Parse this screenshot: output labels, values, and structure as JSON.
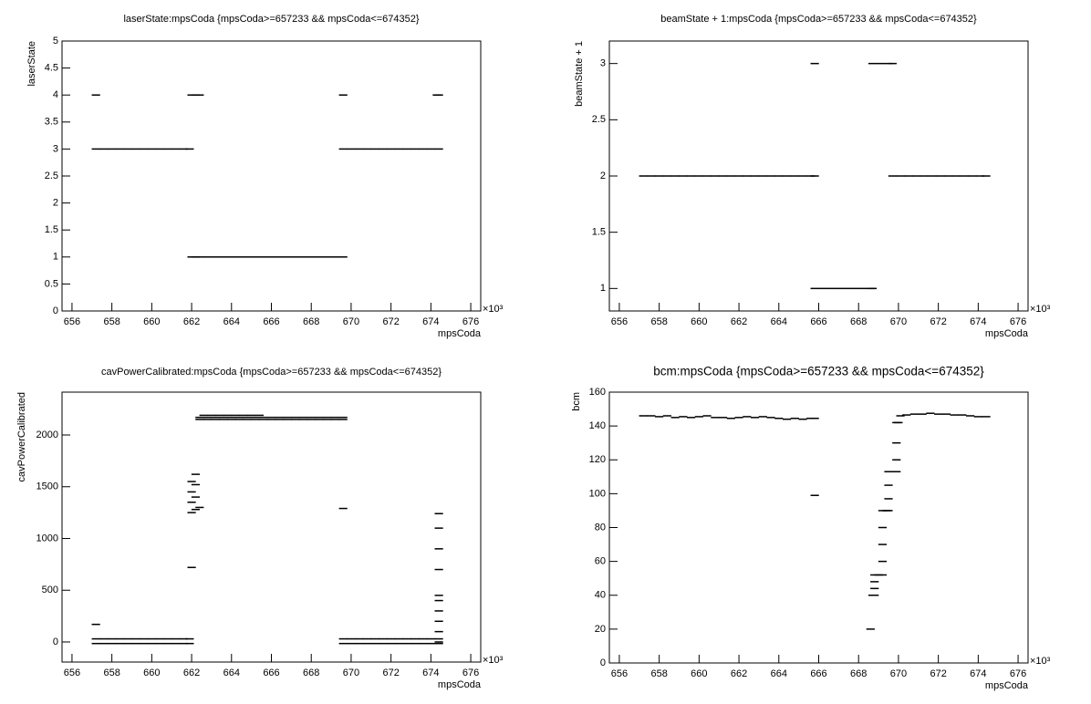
{
  "chart_data": [
    {
      "type": "scatter",
      "title": "laserState:mpsCoda {mpsCoda>=657233 && mpsCoda<=674352}",
      "x_label": "mpsCoda",
      "y_label": "laserState",
      "x_multiplier": "×10³",
      "color": "#000000",
      "xlim": [
        655.5,
        676.5
      ],
      "xticks": [
        656,
        658,
        660,
        662,
        664,
        666,
        668,
        670,
        672,
        674,
        676
      ],
      "ylim": [
        0,
        5
      ],
      "yticks": [
        0,
        0.5,
        1,
        1.5,
        2,
        2.5,
        3,
        3.5,
        4,
        4.5,
        5
      ],
      "x": [
        657.2,
        657.6,
        658.0,
        658.4,
        658.8,
        659.2,
        659.6,
        660.0,
        660.4,
        660.8,
        661.2,
        661.6,
        661.9,
        657.2,
        662.0,
        662.2,
        662.4,
        662.0,
        662.2,
        662.4,
        662.8,
        663.2,
        663.6,
        664.0,
        664.4,
        664.8,
        665.2,
        665.6,
        666.0,
        666.4,
        666.8,
        667.2,
        667.6,
        668.0,
        668.4,
        668.8,
        669.2,
        669.6,
        669.6,
        669.6,
        670.0,
        670.4,
        670.8,
        671.2,
        671.6,
        672.0,
        672.4,
        672.8,
        673.2,
        673.6,
        674.0,
        674.4,
        674.3,
        674.4
      ],
      "values": [
        3,
        3,
        3,
        3,
        3,
        3,
        3,
        3,
        3,
        3,
        3,
        3,
        3,
        4,
        4,
        4,
        4,
        1,
        1,
        1,
        1,
        1,
        1,
        1,
        1,
        1,
        1,
        1,
        1,
        1,
        1,
        1,
        1,
        1,
        1,
        1,
        1,
        1,
        4,
        3,
        3,
        3,
        3,
        3,
        3,
        3,
        3,
        3,
        3,
        3,
        3,
        3,
        4,
        4
      ]
    },
    {
      "type": "scatter",
      "title": "beamState + 1:mpsCoda {mpsCoda>=657233 && mpsCoda<=674352}",
      "x_label": "mpsCoda",
      "y_label": "beamState + 1",
      "x_multiplier": "×10³",
      "color": "#000000",
      "xlim": [
        655.5,
        676.5
      ],
      "xticks": [
        656,
        658,
        660,
        662,
        664,
        666,
        668,
        670,
        672,
        674,
        676
      ],
      "ylim": [
        0.8,
        3.2
      ],
      "yticks": [
        1,
        1.5,
        2,
        2.5,
        3
      ],
      "x": [
        657.2,
        657.6,
        658.0,
        658.4,
        658.8,
        659.2,
        659.6,
        660.0,
        660.4,
        660.8,
        661.2,
        661.6,
        662.0,
        662.4,
        662.8,
        663.2,
        663.6,
        664.0,
        664.4,
        664.8,
        665.2,
        665.6,
        665.8,
        665.8,
        665.8,
        666.2,
        666.6,
        667.0,
        667.4,
        667.8,
        668.2,
        668.6,
        668.7,
        668.7,
        669.1,
        669.5,
        669.7,
        669.7,
        670.1,
        670.5,
        670.9,
        671.3,
        671.7,
        672.1,
        672.5,
        672.9,
        673.3,
        673.7,
        674.1,
        674.4
      ],
      "values": [
        2,
        2,
        2,
        2,
        2,
        2,
        2,
        2,
        2,
        2,
        2,
        2,
        2,
        2,
        2,
        2,
        2,
        2,
        2,
        2,
        2,
        2,
        2,
        3,
        1,
        1,
        1,
        1,
        1,
        1,
        1,
        1,
        1,
        3,
        3,
        3,
        3,
        2,
        2,
        2,
        2,
        2,
        2,
        2,
        2,
        2,
        2,
        2,
        2,
        2
      ]
    },
    {
      "type": "scatter",
      "title": "cavPowerCalibrated:mpsCoda {mpsCoda>=657233 && mpsCoda<=674352}",
      "x_label": "mpsCoda",
      "y_label": "cavPowerCalibrated",
      "x_multiplier": "×10³",
      "color": "#000000",
      "xlim": [
        655.5,
        676.5
      ],
      "xticks": [
        656,
        658,
        660,
        662,
        664,
        666,
        668,
        670,
        672,
        674,
        676
      ],
      "ylim": [
        -194,
        2414
      ],
      "yticks": [
        0,
        500,
        1000,
        1500,
        2000
      ],
      "x": [
        657.2,
        657.6,
        658.0,
        658.4,
        658.8,
        659.2,
        659.6,
        660.0,
        660.4,
        660.8,
        661.2,
        661.6,
        661.9,
        657.2,
        657.6,
        658.0,
        658.4,
        658.8,
        659.2,
        659.6,
        660.0,
        660.4,
        660.8,
        661.2,
        661.6,
        661.9,
        657.2,
        662.0,
        662.0,
        662.0,
        662.0,
        662.0,
        662.2,
        662.2,
        662.2,
        662.2,
        662.4,
        662.6,
        663.0,
        663.4,
        663.8,
        664.2,
        664.6,
        665.0,
        665.4,
        662.4,
        662.8,
        663.2,
        663.6,
        664.0,
        664.4,
        664.8,
        665.2,
        665.6,
        666.0,
        666.4,
        666.8,
        667.2,
        667.6,
        668.0,
        668.4,
        668.8,
        669.2,
        669.6,
        662.4,
        662.8,
        663.2,
        663.6,
        664.0,
        664.4,
        664.8,
        665.2,
        665.6,
        666.0,
        666.4,
        666.8,
        667.2,
        667.6,
        668.0,
        668.4,
        668.8,
        669.2,
        669.6,
        669.6,
        669.6,
        670.0,
        670.4,
        670.8,
        671.2,
        671.6,
        672.0,
        672.4,
        672.8,
        673.2,
        673.6,
        674.0,
        674.4,
        669.6,
        670.0,
        670.4,
        670.8,
        671.2,
        671.6,
        672.0,
        672.4,
        672.8,
        673.2,
        673.6,
        674.0,
        674.4,
        674.4,
        674.4,
        674.4,
        674.4,
        674.4,
        674.4,
        674.4,
        674.4,
        674.4,
        674.4
      ],
      "values": [
        30,
        30,
        30,
        30,
        30,
        30,
        30,
        30,
        30,
        30,
        30,
        30,
        30,
        -15,
        -15,
        -15,
        -15,
        -15,
        -15,
        -15,
        -15,
        -15,
        -15,
        -15,
        -15,
        -15,
        170,
        720,
        1250,
        1350,
        1450,
        1550,
        1280,
        1400,
        1520,
        1620,
        1300,
        2190,
        2190,
        2190,
        2190,
        2190,
        2190,
        2190,
        2190,
        2170,
        2170,
        2170,
        2170,
        2170,
        2170,
        2170,
        2170,
        2170,
        2170,
        2170,
        2170,
        2170,
        2170,
        2170,
        2170,
        2170,
        2170,
        2170,
        2150,
        2150,
        2150,
        2150,
        2150,
        2150,
        2150,
        2150,
        2150,
        2150,
        2150,
        2150,
        2150,
        2150,
        2150,
        2150,
        2150,
        2150,
        2150,
        1290,
        30,
        30,
        30,
        30,
        30,
        30,
        30,
        30,
        30,
        30,
        30,
        30,
        30,
        -15,
        -15,
        -15,
        -15,
        -15,
        -15,
        -15,
        -15,
        -15,
        -15,
        -15,
        -15,
        -15,
        0,
        100,
        200,
        300,
        400,
        450,
        700,
        900,
        1100,
        1240
      ]
    },
    {
      "type": "scatter",
      "title": "bcm:mpsCoda {mpsCoda>=657233 && mpsCoda<=674352}",
      "x_label": "mpsCoda",
      "y_label": "bcm",
      "x_multiplier": "×10³",
      "color": "#000000",
      "xlim": [
        655.5,
        676.5
      ],
      "xticks": [
        656,
        658,
        660,
        662,
        664,
        666,
        668,
        670,
        672,
        674,
        676
      ],
      "ylim": [
        0,
        160
      ],
      "yticks": [
        0,
        20,
        40,
        60,
        80,
        100,
        120,
        140,
        160
      ],
      "x": [
        657.2,
        657.6,
        658.0,
        658.4,
        658.8,
        659.2,
        659.6,
        660.0,
        660.4,
        660.8,
        661.2,
        661.6,
        662.0,
        662.4,
        662.8,
        663.2,
        663.6,
        664.0,
        664.4,
        664.8,
        665.2,
        665.6,
        665.8,
        665.8,
        668.6,
        668.7,
        668.8,
        668.8,
        668.8,
        668.8,
        669.0,
        669.2,
        669.2,
        669.2,
        669.2,
        669.2,
        669.4,
        669.5,
        669.5,
        669.5,
        669.5,
        669.7,
        669.9,
        669.9,
        669.9,
        669.9,
        670.0,
        670.1,
        670.4,
        670.8,
        671.2,
        671.6,
        672.0,
        672.4,
        672.8,
        673.2,
        673.6,
        674.0,
        674.4
      ],
      "values": [
        146,
        146,
        145.5,
        146,
        145,
        145.5,
        145,
        145.5,
        146,
        145,
        145,
        144.5,
        145,
        145.5,
        145,
        145.5,
        145,
        144.5,
        144,
        144.5,
        144,
        144.5,
        144.5,
        99,
        20,
        40,
        40,
        44,
        48,
        52,
        52,
        52,
        60,
        70,
        80,
        90,
        90,
        90,
        97,
        105,
        113,
        113,
        113,
        120,
        130,
        142,
        142,
        146,
        146.5,
        147,
        147,
        147.5,
        147,
        147,
        146.5,
        146.5,
        146,
        145.5,
        145.5
      ]
    }
  ]
}
